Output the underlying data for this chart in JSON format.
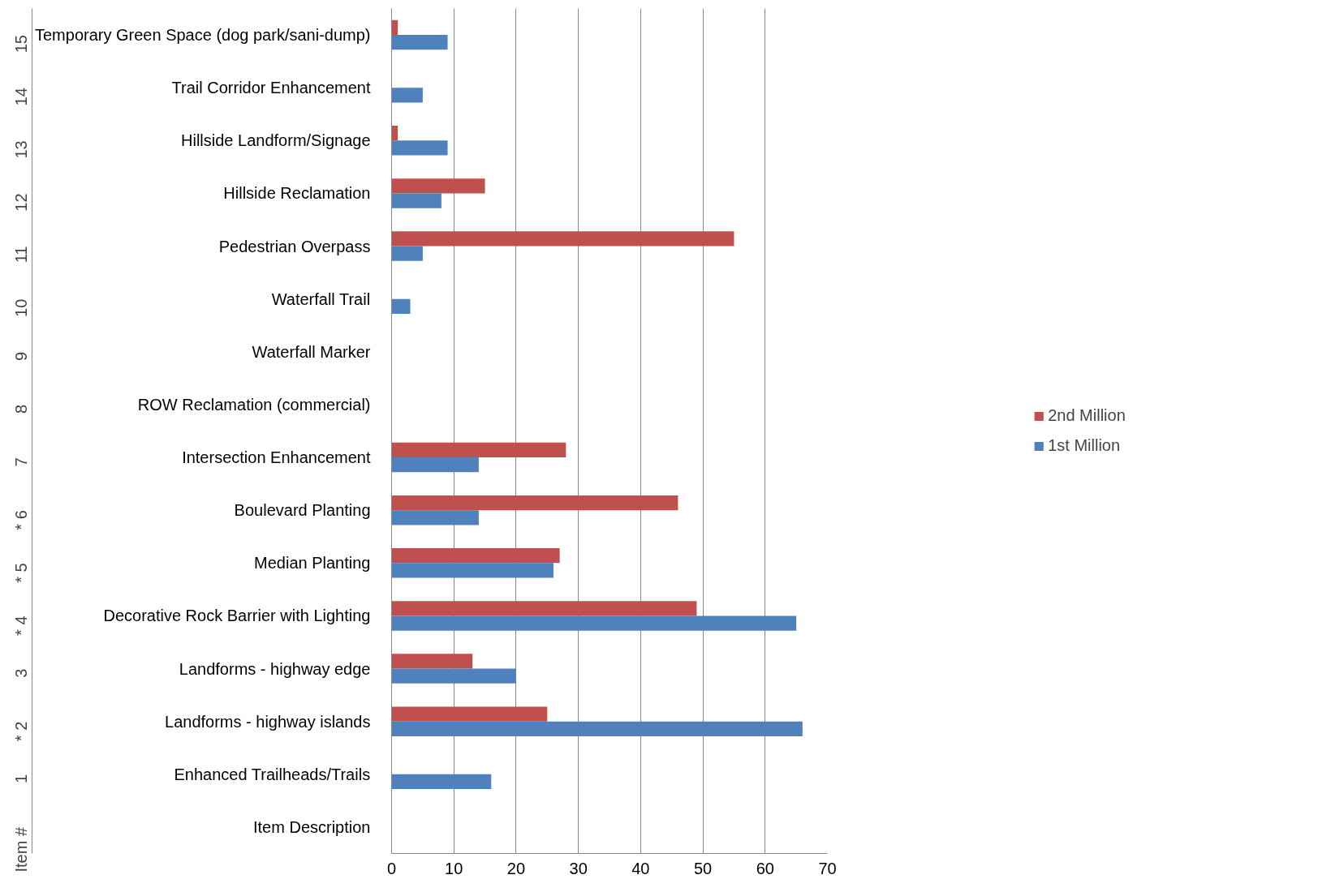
{
  "chart_data": {
    "type": "bar",
    "orientation": "horizontal",
    "categories": [
      "Temporary Green Space (dog park/sani-dump)",
      "Trail Corridor Enhancement",
      "Hillside Landform/Signage",
      "Hillside Reclamation",
      "Pedestrian Overpass",
      "Waterfall Trail",
      "Waterfall Marker",
      "ROW Reclamation (commercial)",
      "Intersection Enhancement",
      "Boulevard Planting",
      "Median Planting",
      "Decorative Rock Barrier with Lighting",
      "Landforms - highway edge",
      "Landforms - highway islands",
      "Enhanced Trailheads/Trails",
      "Item Description"
    ],
    "annotations": [
      "15",
      "14",
      "13",
      "12",
      "11",
      "10",
      "9",
      "8",
      "7",
      "* 6",
      "* 5",
      "* 4",
      "3",
      "* 2",
      "1",
      "Item #"
    ],
    "series": [
      {
        "name": "2nd Million",
        "color": "#c0504d",
        "values": [
          1,
          null,
          1,
          15,
          55,
          null,
          null,
          null,
          28,
          46,
          27,
          49,
          13,
          25,
          null,
          null
        ]
      },
      {
        "name": "1st Million",
        "color": "#4f81bd",
        "values": [
          9,
          5,
          9,
          8,
          5,
          3,
          null,
          null,
          14,
          14,
          26,
          65,
          20,
          66,
          16,
          null
        ]
      }
    ],
    "xlim": [
      0,
      70
    ],
    "xticks": [
      0,
      10,
      20,
      30,
      40,
      50,
      60,
      70
    ],
    "grid": "x",
    "legend": "right"
  }
}
